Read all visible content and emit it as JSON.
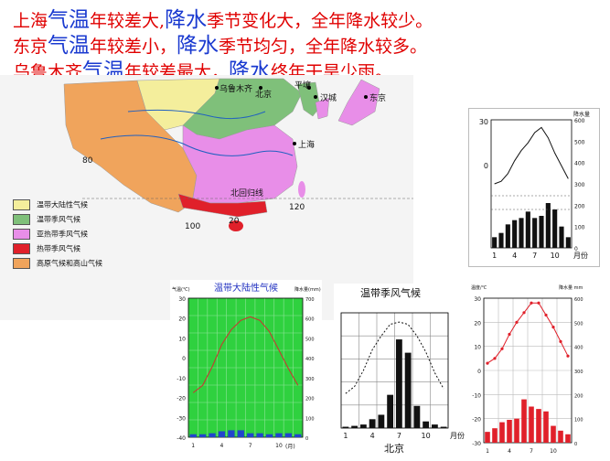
{
  "headline": {
    "line1": {
      "a": "上海",
      "b": "气温",
      "c": "年较差大,",
      "d": "降水",
      "e": "季节变化大，全年降水较少。"
    },
    "line2": {
      "a": "东京",
      "b": "气温",
      "c": "年较差小，",
      "d": "降水",
      "e": "季节均匀，全年降水较多。"
    },
    "line3": {
      "a": "乌鲁木齐",
      "b": "气温",
      "c": "年较差最大，",
      "d": "降水",
      "e": "终年干旱少雨。"
    }
  },
  "map": {
    "labels": {
      "urumqi": "乌鲁木齐",
      "beijing": "北京",
      "pyongyang": "平壤",
      "seoul": "汉城",
      "tokyo": "东京",
      "shanghai": "上海",
      "tropic": "北回归线",
      "n80": "80",
      "n100": "100",
      "n120": "120",
      "n20": "20"
    },
    "legend": [
      {
        "label": "温带大陆性气候",
        "color": "#f4ee9c"
      },
      {
        "label": "温带季风气候",
        "color": "#7fc07a"
      },
      {
        "label": "亚热带季风气候",
        "color": "#e88ee8"
      },
      {
        "label": "热带季风气候",
        "color": "#e0202a"
      },
      {
        "label": "高原气候和高山气候",
        "color": "#f0a45c"
      }
    ]
  },
  "chart_tokyo": {
    "chart_data": {
      "type": "bar+line",
      "x": [
        1,
        2,
        3,
        4,
        5,
        6,
        7,
        8,
        9,
        10,
        11,
        12
      ],
      "ticks_x": [
        "1",
        "4",
        "7",
        "10",
        "月份"
      ],
      "temp": [
        5,
        6,
        9,
        14,
        18,
        21,
        25,
        27,
        23,
        17,
        12,
        7
      ],
      "precip": [
        50,
        70,
        110,
        130,
        140,
        170,
        140,
        150,
        210,
        180,
        100,
        50
      ],
      "yleft": [
        "30",
        "0"
      ],
      "yright_label": "降水量",
      "yright": [
        "600",
        "500",
        "400",
        "300",
        "200",
        "100",
        "0"
      ]
    }
  },
  "chart_urumqi": {
    "title": "温带大陆性气候",
    "ylabel_left": "气温(℃)",
    "ylabel_right": "降水量(mm)",
    "xlabel": "(月)",
    "chart_data": {
      "type": "bar+line",
      "x": [
        1,
        2,
        3,
        4,
        5,
        6,
        7,
        8,
        9,
        10,
        11,
        12
      ],
      "ticks_x": [
        "1",
        "4",
        "7",
        "10"
      ],
      "temp": [
        -16,
        -12,
        -2,
        10,
        18,
        23,
        25,
        23,
        17,
        7,
        -3,
        -12
      ],
      "precip": [
        15,
        15,
        20,
        30,
        35,
        35,
        20,
        20,
        15,
        20,
        20,
        15
      ],
      "yleft": [
        "30",
        "20",
        "10",
        "0",
        "-10",
        "-20",
        "-30",
        "-40"
      ],
      "yright": [
        "700",
        "600",
        "500",
        "400",
        "300",
        "200",
        "100",
        "0"
      ]
    }
  },
  "chart_beijing": {
    "title": "温带季风气候",
    "xlabel": "北京",
    "chart_data": {
      "type": "bar+line",
      "x": [
        1,
        2,
        3,
        4,
        5,
        6,
        7,
        8,
        9,
        10,
        11,
        12
      ],
      "ticks_x": [
        "1",
        "4",
        "7",
        "10",
        "月份"
      ],
      "temp": [
        -5,
        -2,
        5,
        14,
        20,
        25,
        26,
        25,
        20,
        13,
        4,
        -3
      ],
      "precip": [
        3,
        5,
        8,
        20,
        30,
        75,
        200,
        170,
        50,
        15,
        8,
        3
      ]
    }
  },
  "chart_shanghai": {
    "ylabel_left": "温度/℃",
    "ylabel_right": "降水量 mm",
    "chart_data": {
      "type": "bar+line",
      "x": [
        1,
        2,
        3,
        4,
        5,
        6,
        7,
        8,
        9,
        10,
        11,
        12
      ],
      "ticks_x": [
        "1",
        "4",
        "7",
        "10"
      ],
      "temp": [
        3,
        5,
        9,
        15,
        20,
        24,
        28,
        28,
        23,
        18,
        12,
        6
      ],
      "precip": [
        45,
        60,
        85,
        95,
        100,
        180,
        150,
        140,
        130,
        70,
        50,
        35
      ],
      "yleft": [
        "30",
        "20",
        "10",
        "0",
        "-10",
        "-20",
        "-30"
      ],
      "yright": [
        "600",
        "500",
        "400",
        "300",
        "200",
        "100",
        "0"
      ]
    }
  }
}
